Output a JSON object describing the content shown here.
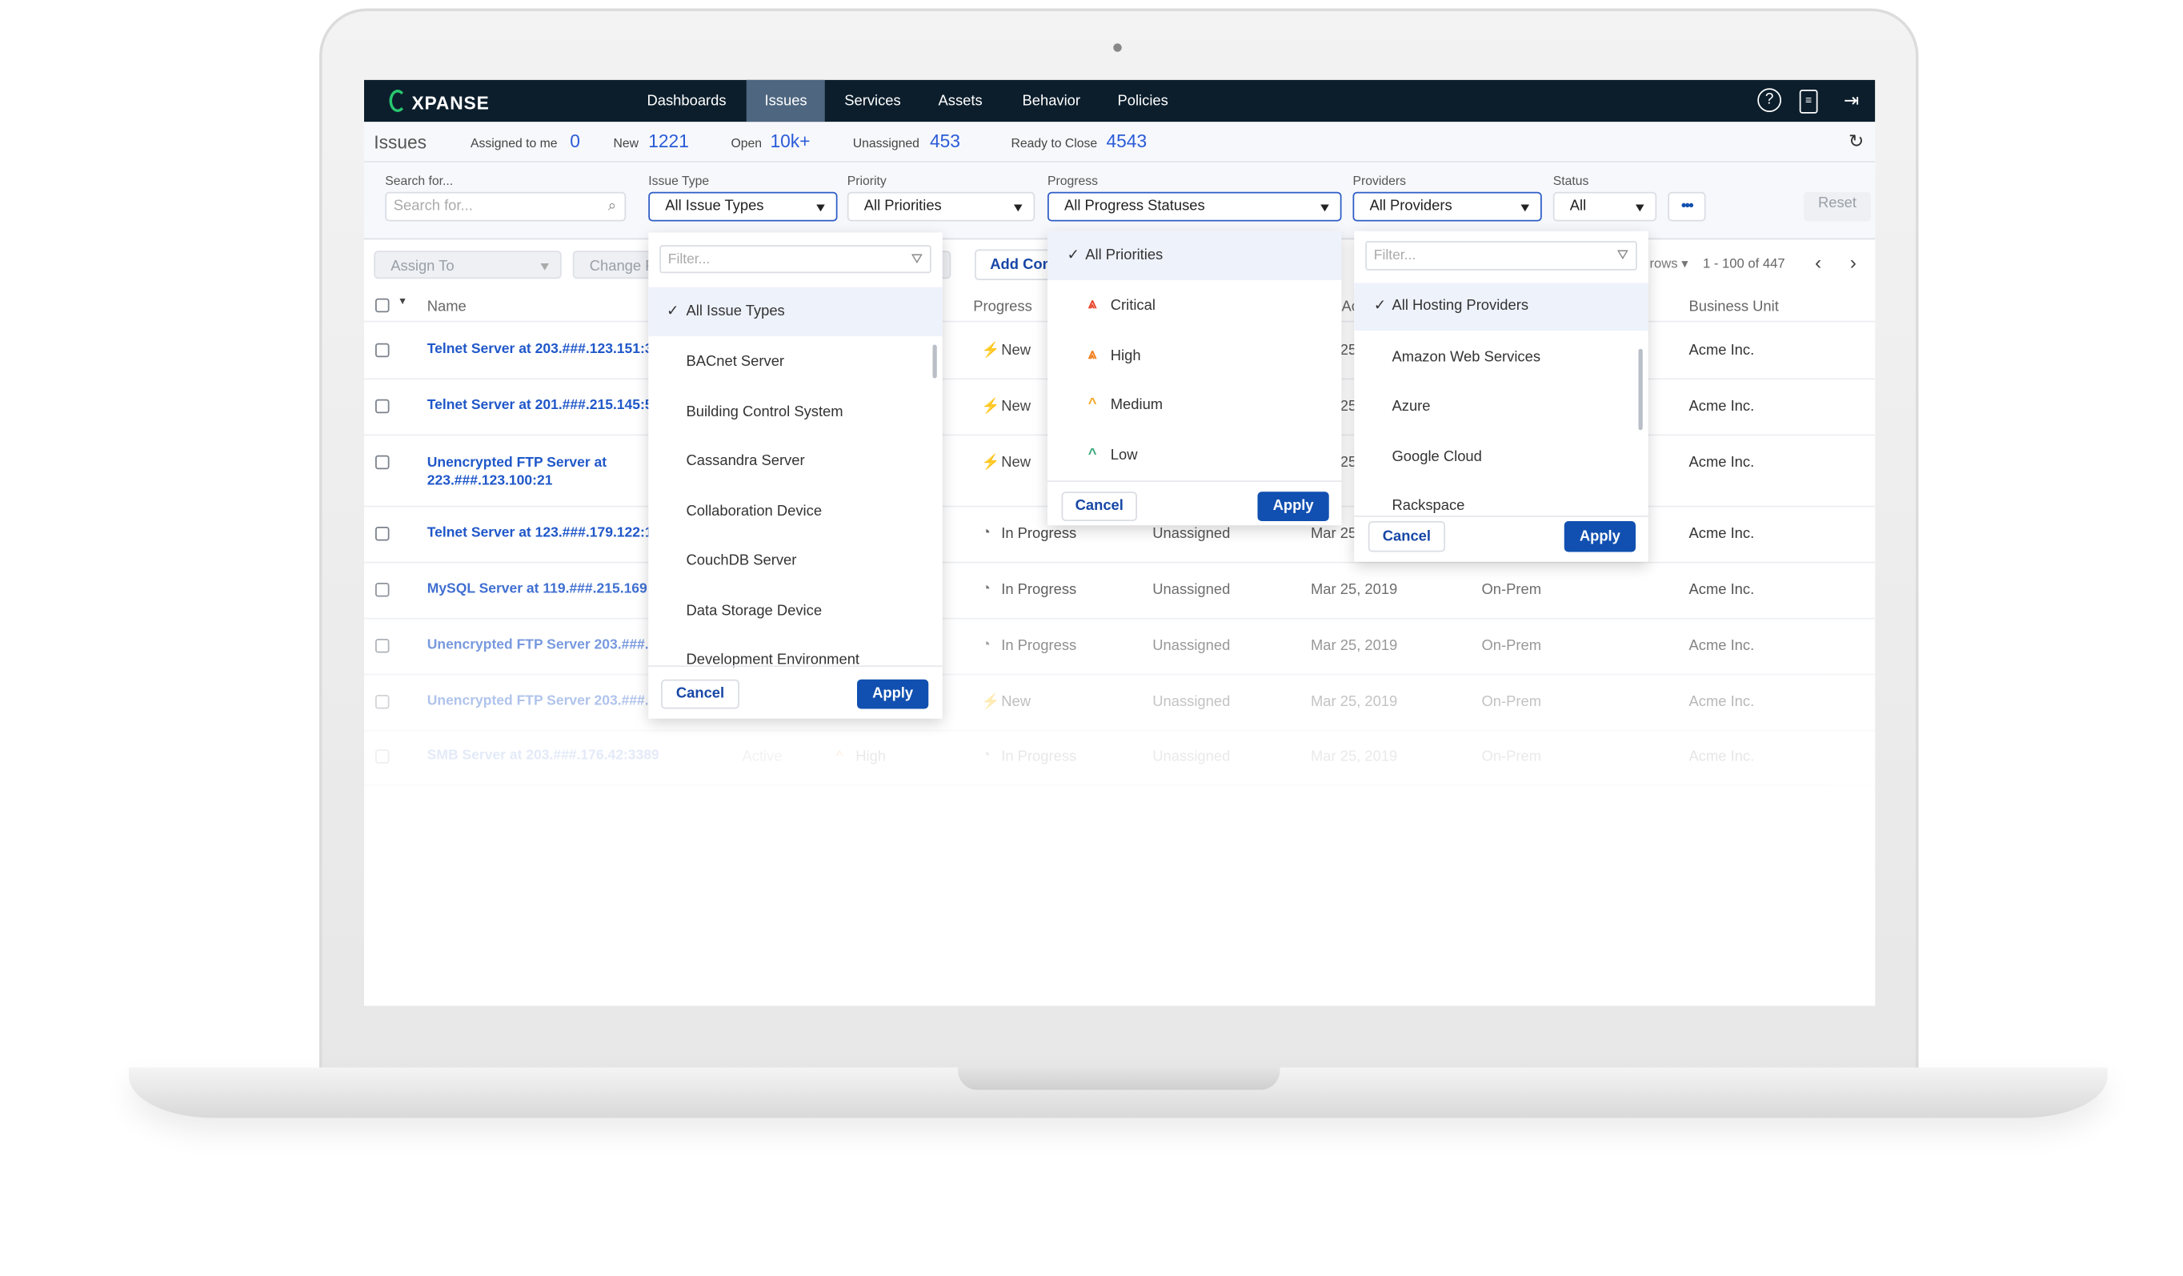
{
  "app": {
    "brand": "XPANSE",
    "nav": [
      {
        "label": "Dashboards"
      },
      {
        "label": "Issues"
      },
      {
        "label": "Services"
      },
      {
        "label": "Assets"
      },
      {
        "label": "Behavior"
      },
      {
        "label": "Policies"
      }
    ],
    "active_nav": "Issues",
    "icons": [
      "help-icon",
      "document-icon",
      "logout-icon"
    ]
  },
  "summary": {
    "title": "Issues",
    "assigned_label": "Assigned to me",
    "assigned": "0",
    "new_label": "New",
    "new": "1221",
    "open_label": "Open",
    "open": "10k+",
    "unassigned_label": "Unassigned",
    "unassigned": "453",
    "ready_label": "Ready to Close",
    "ready": "4543"
  },
  "filters": {
    "search_label": "Search for...",
    "search_placeholder": "Search for...",
    "issue_type_label": "Issue Type",
    "issue_type": "All Issue Types",
    "priority_label": "Priority",
    "priority": "All Priorities",
    "progress_label": "Progress",
    "progress": "All Progress Statuses",
    "providers_label": "Providers",
    "providers": "All Providers",
    "status_label": "Status",
    "status": "All",
    "reset": "Reset"
  },
  "toolbar": {
    "assign_to": "Assign To",
    "change": "Change P",
    "add_comment": "Add Com",
    "rows": "rows",
    "range": "1 - 100 of 447"
  },
  "columns": {
    "name": "Name",
    "progress": "Progress",
    "business_unit": "Business Unit",
    "ac": "Ac"
  },
  "rows": [
    {
      "name": "Telnet Server at 203.###.123.151:3",
      "status": "",
      "priority": "",
      "progress": "New",
      "assignee": "",
      "date": "25",
      "provider": "",
      "bu": "Acme Inc."
    },
    {
      "name": "Telnet Server at 201.###.215.145:5",
      "status": "",
      "priority": "",
      "progress": "New",
      "assignee": "",
      "date": "25",
      "provider": "",
      "bu": "Acme Inc."
    },
    {
      "name": "Unencrypted FTP Server at 223.###.123.100:21",
      "status": "",
      "priority": "",
      "progress": "New",
      "assignee": "",
      "date": "25",
      "provider": "",
      "bu": "Acme Inc."
    },
    {
      "name": "Telnet Server at 123.###.179.122:1",
      "status": "",
      "priority": "",
      "progress": "In Progress",
      "assignee": "Unassigned",
      "date": "Mar 25",
      "provider": "",
      "bu": "Acme Inc."
    },
    {
      "name": "MySQL Server at 119.###.215.169:4",
      "status": "",
      "priority": "",
      "progress": "In Progress",
      "assignee": "Unassigned",
      "date": "Mar 25, 2019",
      "provider": "On-Prem",
      "bu": "Acme Inc."
    },
    {
      "name": "Unencrypted FTP Server 203.###.17",
      "status": "",
      "priority": "",
      "progress": "In Progress",
      "assignee": "Unassigned",
      "date": "Mar 25, 2019",
      "provider": "On-Prem",
      "bu": "Acme Inc."
    },
    {
      "name": "Unencrypted FTP Server 203.###.10",
      "status": "",
      "priority": "",
      "progress": "New",
      "assignee": "Unassigned",
      "date": "Mar 25, 2019",
      "provider": "On-Prem",
      "bu": "Acme Inc."
    },
    {
      "name": "SMB Server at 203.###.176.42:3389",
      "status": "Active",
      "priority": "High",
      "progress": "In Progress",
      "assignee": "Unassigned",
      "date": "Mar 25, 2019",
      "provider": "On-Prem",
      "bu": "Acme Inc."
    }
  ],
  "issue_type_dropdown": {
    "filter_placeholder": "Filter...",
    "selected": "All Issue Types",
    "options": [
      "BACnet Server",
      "Building Control System",
      "Cassandra Server",
      "Collaboration Device",
      "CouchDB Server",
      "Data Storage Device",
      "Development Environment"
    ],
    "cancel": "Cancel",
    "apply": "Apply"
  },
  "priority_dropdown": {
    "selected": "All Priorities",
    "options": [
      {
        "label": "Critical",
        "color": "#e8452c"
      },
      {
        "label": "High",
        "color": "#f07d1a"
      },
      {
        "label": "Medium",
        "color": "#f5a623"
      },
      {
        "label": "Low",
        "color": "#3aa77a"
      }
    ],
    "cancel": "Cancel",
    "apply": "Apply"
  },
  "providers_dropdown": {
    "filter_placeholder": "Filter...",
    "selected": "All Hosting Providers",
    "options": [
      "Amazon Web Services",
      "Azure",
      "Google Cloud",
      "Rackspace"
    ],
    "cancel": "Cancel",
    "apply": "Apply"
  },
  "colors": {
    "nav_bg": "#0c1e2c",
    "accent": "#1150b0",
    "link": "#1f57c9",
    "new_icon": "#f5a623"
  }
}
